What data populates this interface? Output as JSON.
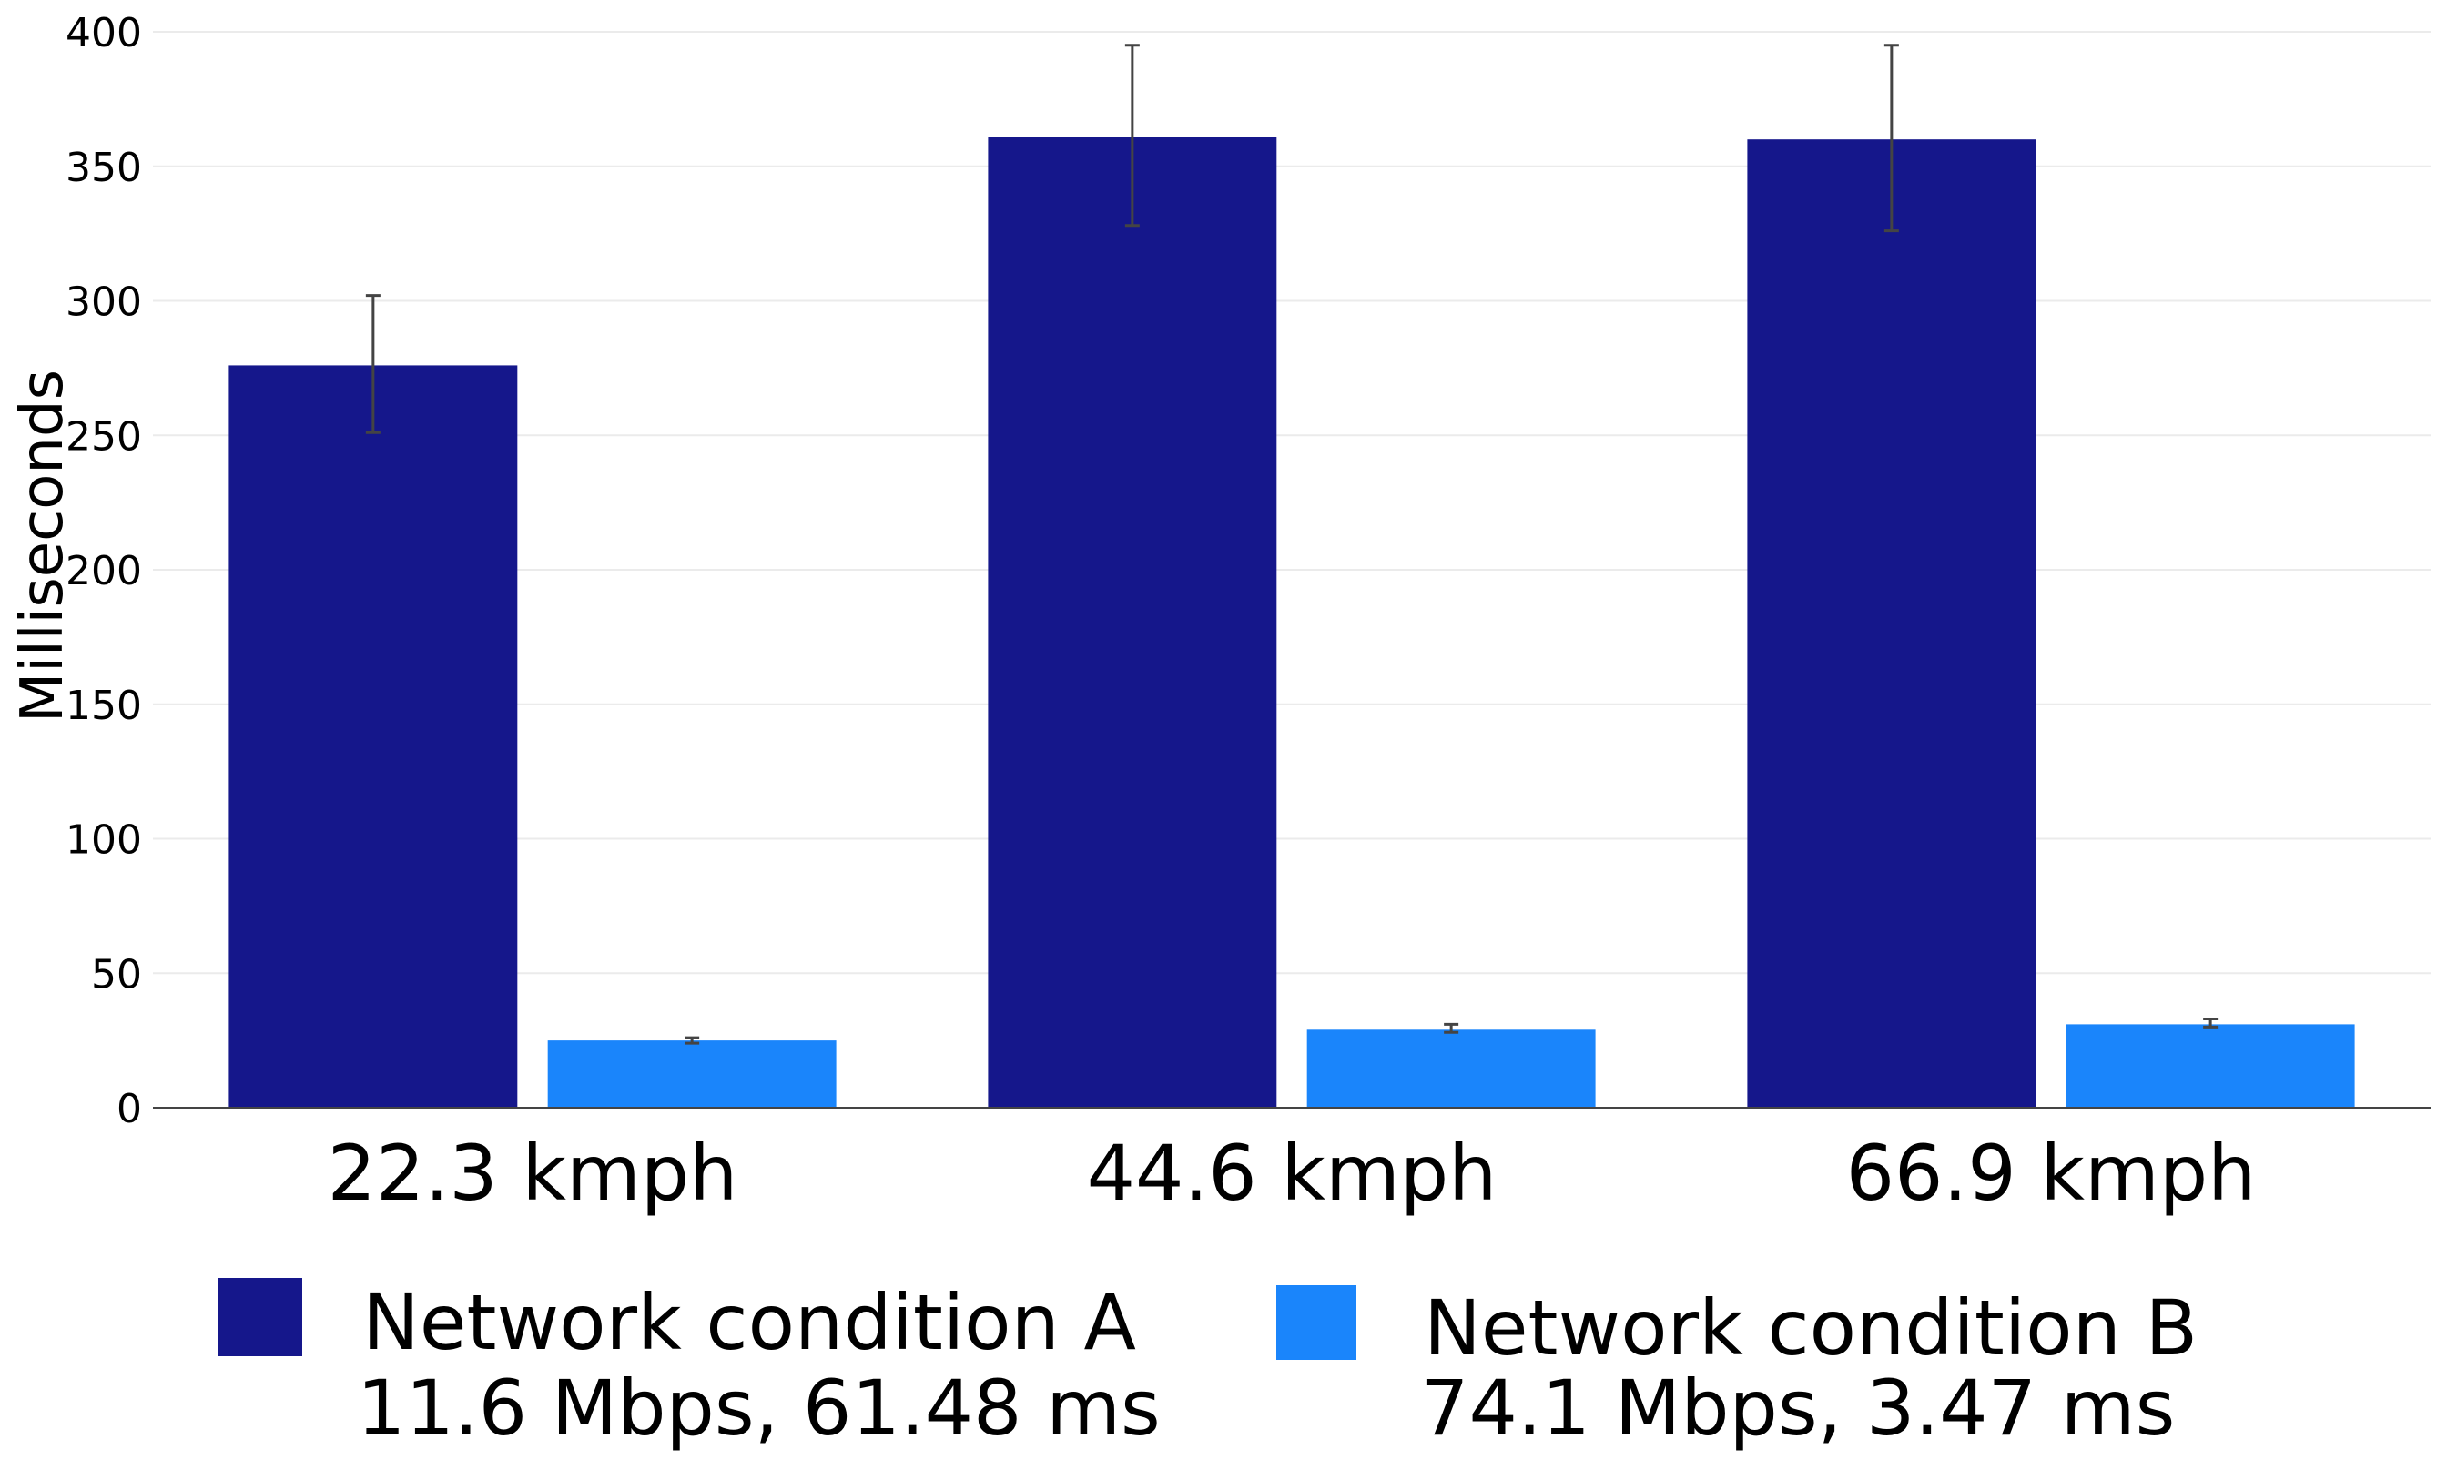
{
  "chart_data": {
    "type": "bar",
    "title": "",
    "xlabel": "",
    "ylabel": "Milliseconds",
    "ylim": [
      0,
      400
    ],
    "yticks": [
      0,
      50,
      100,
      150,
      200,
      250,
      300,
      350,
      400
    ],
    "grid": true,
    "legend_position": "bottom",
    "categories": [
      "22.3 kmph",
      "44.6 kmph",
      "66.9 kmph"
    ],
    "series": [
      {
        "name": "Network condition A",
        "subtitle": "11.6 Mbps, 61.48 ms",
        "color": "#15178b",
        "values": [
          276,
          361,
          360
        ],
        "error_low": [
          251,
          328,
          326
        ],
        "error_high": [
          302,
          395,
          395
        ]
      },
      {
        "name": "Network condition B",
        "subtitle": "74.1 Mbps, 3.47 ms",
        "color": "#1a85fb",
        "values": [
          25,
          29,
          31
        ],
        "error_low": [
          24,
          28,
          30
        ],
        "error_high": [
          26,
          31,
          33
        ]
      }
    ]
  }
}
